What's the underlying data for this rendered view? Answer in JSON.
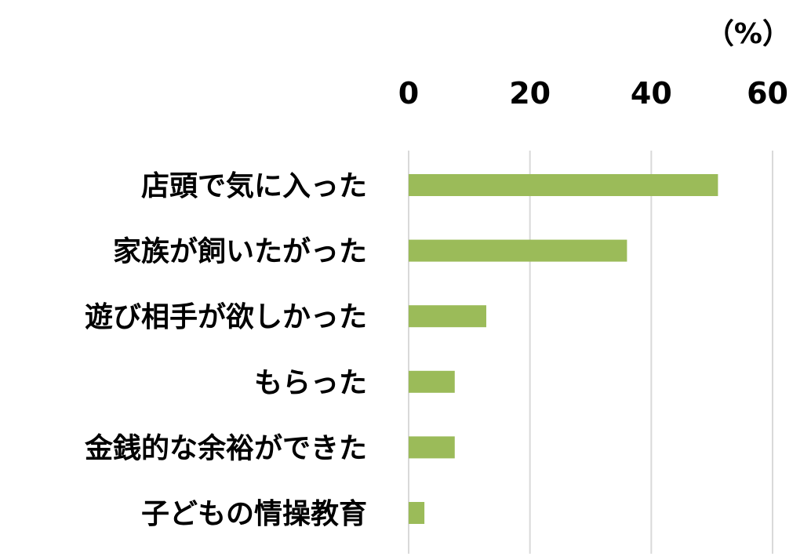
{
  "chart_data": {
    "type": "bar",
    "orientation": "horizontal",
    "unit_label": "（%）",
    "xlim": [
      0,
      60
    ],
    "ticks": [
      0,
      20,
      40,
      60
    ],
    "tick_labels": [
      "0",
      "20",
      "40",
      "60"
    ],
    "axis_position": "top",
    "grid": true,
    "categories": [
      "店頭で気に入った",
      "家族が飼いたがった",
      "遊び相手が欲しかった",
      "もらった",
      "金銭的な余裕ができた",
      "子どもの情操教育"
    ],
    "values": [
      51,
      36,
      12.8,
      7.6,
      7.6,
      2.6
    ],
    "colors": {
      "bar": "#9bbb59",
      "grid": "#d9d9d9",
      "text": "#000000"
    }
  }
}
